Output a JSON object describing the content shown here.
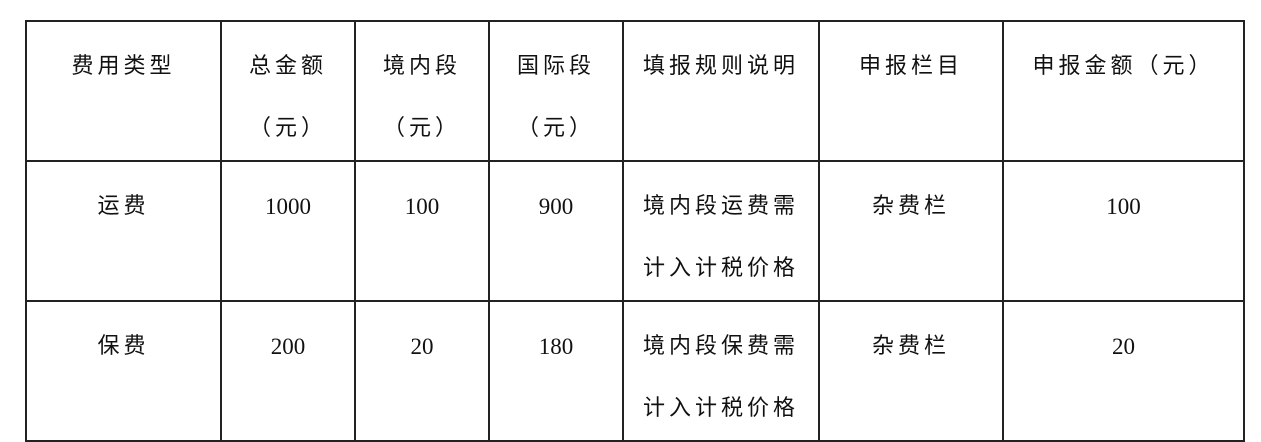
{
  "headers": [
    {
      "lines": [
        "费用类型"
      ]
    },
    {
      "lines": [
        "总金额",
        "（元）"
      ]
    },
    {
      "lines": [
        "境内段",
        "（元）"
      ]
    },
    {
      "lines": [
        "国际段",
        "（元）"
      ]
    },
    {
      "lines": [
        "填报规则说明"
      ]
    },
    {
      "lines": [
        "申报栏目"
      ]
    },
    {
      "lines": [
        "申报金额（元）"
      ]
    }
  ],
  "rows": [
    {
      "type": "运费",
      "total": "1000",
      "domestic": "100",
      "international": "900",
      "rule": [
        "境内段运费需",
        "计入计税价格"
      ],
      "column": "杂费栏",
      "amount": "100"
    },
    {
      "type": "保费",
      "total": "200",
      "domestic": "20",
      "international": "180",
      "rule": [
        "境内段保费需",
        "计入计税价格"
      ],
      "column": "杂费栏",
      "amount": "20"
    }
  ]
}
